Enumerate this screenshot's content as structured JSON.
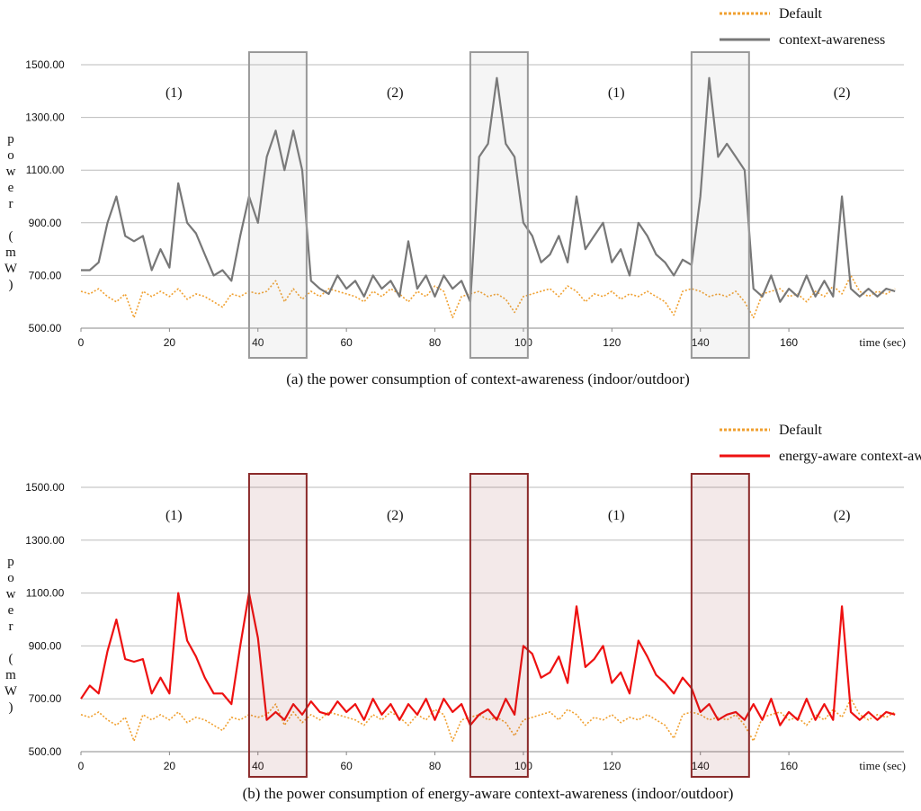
{
  "chart_data": [
    {
      "type": "line",
      "caption": "(a) the power consumption of context-awareness (indoor/outdoor)",
      "ylabel": "power (mW)",
      "xlabel": "time (sec)",
      "xlim": [
        0,
        186
      ],
      "xticks": [
        0,
        20,
        40,
        60,
        80,
        100,
        120,
        140,
        160
      ],
      "ylim": [
        500,
        1500
      ],
      "yticks": [
        {
          "value": 500,
          "label": "500.00"
        },
        {
          "value": 700,
          "label": "700.00"
        },
        {
          "value": 900,
          "label": "900.00"
        },
        {
          "value": 1100,
          "label": "1100.00"
        },
        {
          "value": 1300,
          "label": "1300.00"
        },
        {
          "value": 1500,
          "label": "1500.00"
        }
      ],
      "grid": true,
      "legend": "top-right",
      "highlights": [
        [
          38,
          51
        ],
        [
          88,
          101
        ],
        [
          138,
          151
        ]
      ],
      "highlight_color": "#999999",
      "annotations": [
        {
          "text": "(1)",
          "x": 21
        },
        {
          "text": "(2)",
          "x": 71
        },
        {
          "text": "(1)",
          "x": 121
        },
        {
          "text": "(2)",
          "x": 172
        }
      ],
      "x": [
        0,
        2,
        4,
        6,
        8,
        10,
        12,
        14,
        16,
        18,
        20,
        22,
        24,
        26,
        28,
        30,
        32,
        34,
        36,
        38,
        40,
        42,
        44,
        46,
        48,
        50,
        52,
        54,
        56,
        58,
        60,
        62,
        64,
        66,
        68,
        70,
        72,
        74,
        76,
        78,
        80,
        82,
        84,
        86,
        88,
        90,
        92,
        94,
        96,
        98,
        100,
        102,
        104,
        106,
        108,
        110,
        112,
        114,
        116,
        118,
        120,
        122,
        124,
        126,
        128,
        130,
        132,
        134,
        136,
        138,
        140,
        142,
        144,
        146,
        148,
        150,
        152,
        154,
        156,
        158,
        160,
        162,
        164,
        166,
        168,
        170,
        172,
        174,
        176,
        178,
        180,
        182,
        184
      ],
      "series": [
        {
          "name": "Default",
          "color": "#f0a030",
          "style": "dotted",
          "values": [
            640,
            630,
            650,
            620,
            600,
            630,
            540,
            640,
            620,
            640,
            620,
            650,
            610,
            630,
            620,
            600,
            580,
            630,
            620,
            640,
            630,
            640,
            680,
            600,
            650,
            610,
            640,
            620,
            650,
            640,
            630,
            620,
            600,
            640,
            620,
            650,
            630,
            600,
            640,
            620,
            660,
            640,
            540,
            620,
            630,
            640,
            620,
            630,
            610,
            560,
            620,
            630,
            640,
            650,
            620,
            660,
            640,
            600,
            630,
            620,
            640,
            610,
            630,
            620,
            640,
            620,
            600,
            550,
            640,
            650,
            640,
            620,
            630,
            620,
            640,
            600,
            540,
            630,
            640,
            650,
            620,
            630,
            600,
            640,
            620,
            660,
            630,
            700,
            640,
            620,
            640,
            630,
            650
          ]
        },
        {
          "name": "context-awareness",
          "color": "#777777",
          "style": "solid",
          "values": [
            720,
            720,
            750,
            900,
            1000,
            850,
            830,
            850,
            720,
            800,
            730,
            1050,
            900,
            860,
            780,
            700,
            720,
            680,
            850,
            1000,
            900,
            1150,
            1250,
            1100,
            1250,
            1100,
            680,
            650,
            630,
            700,
            650,
            680,
            620,
            700,
            650,
            680,
            620,
            830,
            650,
            700,
            620,
            700,
            650,
            680,
            600,
            1150,
            1200,
            1450,
            1200,
            1150,
            900,
            850,
            750,
            780,
            850,
            750,
            1000,
            800,
            850,
            900,
            750,
            800,
            700,
            900,
            850,
            780,
            750,
            700,
            760,
            740,
            1000,
            1450,
            1150,
            1200,
            1150,
            1100,
            650,
            620,
            700,
            600,
            650,
            620,
            700,
            620,
            680,
            620,
            1000,
            650,
            620,
            650,
            620,
            650,
            640
          ]
        }
      ]
    },
    {
      "type": "line",
      "caption": "(b) the power consumption of energy-aware context-awareness (indoor/outdoor)",
      "ylabel": "power (mW)",
      "xlabel": "time (sec)",
      "xlim": [
        0,
        186
      ],
      "xticks": [
        0,
        20,
        40,
        60,
        80,
        100,
        120,
        140,
        160
      ],
      "ylim": [
        500,
        1500
      ],
      "yticks": [
        {
          "value": 500,
          "label": "500.00"
        },
        {
          "value": 700,
          "label": "700.00"
        },
        {
          "value": 900,
          "label": "900.00"
        },
        {
          "value": 1100,
          "label": "1100.00"
        },
        {
          "value": 1300,
          "label": "1300.00"
        },
        {
          "value": 1500,
          "label": "1500.00"
        }
      ],
      "grid": true,
      "legend": "top-right",
      "highlights": [
        [
          38,
          51
        ],
        [
          88,
          101
        ],
        [
          138,
          151
        ]
      ],
      "highlight_color": "#8b2a2a",
      "annotations": [
        {
          "text": "(1)",
          "x": 21
        },
        {
          "text": "(2)",
          "x": 71
        },
        {
          "text": "(1)",
          "x": 121
        },
        {
          "text": "(2)",
          "x": 172
        }
      ],
      "x": [
        0,
        2,
        4,
        6,
        8,
        10,
        12,
        14,
        16,
        18,
        20,
        22,
        24,
        26,
        28,
        30,
        32,
        34,
        36,
        38,
        40,
        42,
        44,
        46,
        48,
        50,
        52,
        54,
        56,
        58,
        60,
        62,
        64,
        66,
        68,
        70,
        72,
        74,
        76,
        78,
        80,
        82,
        84,
        86,
        88,
        90,
        92,
        94,
        96,
        98,
        100,
        102,
        104,
        106,
        108,
        110,
        112,
        114,
        116,
        118,
        120,
        122,
        124,
        126,
        128,
        130,
        132,
        134,
        136,
        138,
        140,
        142,
        144,
        146,
        148,
        150,
        152,
        154,
        156,
        158,
        160,
        162,
        164,
        166,
        168,
        170,
        172,
        174,
        176,
        178,
        180,
        182,
        184
      ],
      "series": [
        {
          "name": "Default",
          "color": "#f0a030",
          "style": "dotted",
          "values": [
            640,
            630,
            650,
            620,
            600,
            630,
            540,
            640,
            620,
            640,
            620,
            650,
            610,
            630,
            620,
            600,
            580,
            630,
            620,
            640,
            630,
            640,
            680,
            600,
            650,
            610,
            640,
            620,
            650,
            640,
            630,
            620,
            600,
            640,
            620,
            650,
            630,
            600,
            640,
            620,
            660,
            640,
            540,
            620,
            630,
            640,
            620,
            630,
            610,
            560,
            620,
            630,
            640,
            650,
            620,
            660,
            640,
            600,
            630,
            620,
            640,
            610,
            630,
            620,
            640,
            620,
            600,
            550,
            640,
            650,
            640,
            620,
            630,
            620,
            640,
            600,
            540,
            630,
            640,
            650,
            620,
            630,
            600,
            640,
            620,
            660,
            630,
            700,
            640,
            620,
            640,
            630,
            650
          ]
        },
        {
          "name": "energy-aware context-awareness",
          "color": "#ee1111",
          "style": "solid",
          "values": [
            700,
            750,
            720,
            880,
            1000,
            850,
            840,
            850,
            720,
            780,
            720,
            1100,
            920,
            860,
            780,
            720,
            720,
            680,
            900,
            1100,
            930,
            620,
            650,
            620,
            680,
            640,
            690,
            650,
            640,
            690,
            650,
            680,
            620,
            700,
            640,
            680,
            620,
            680,
            640,
            700,
            620,
            700,
            650,
            680,
            600,
            640,
            660,
            620,
            700,
            640,
            900,
            870,
            780,
            800,
            860,
            760,
            1050,
            820,
            850,
            900,
            760,
            800,
            720,
            920,
            860,
            790,
            760,
            720,
            780,
            740,
            650,
            680,
            620,
            640,
            650,
            620,
            680,
            620,
            700,
            600,
            650,
            620,
            700,
            620,
            680,
            620,
            1050,
            650,
            620,
            650,
            620,
            650,
            640
          ]
        }
      ]
    }
  ]
}
